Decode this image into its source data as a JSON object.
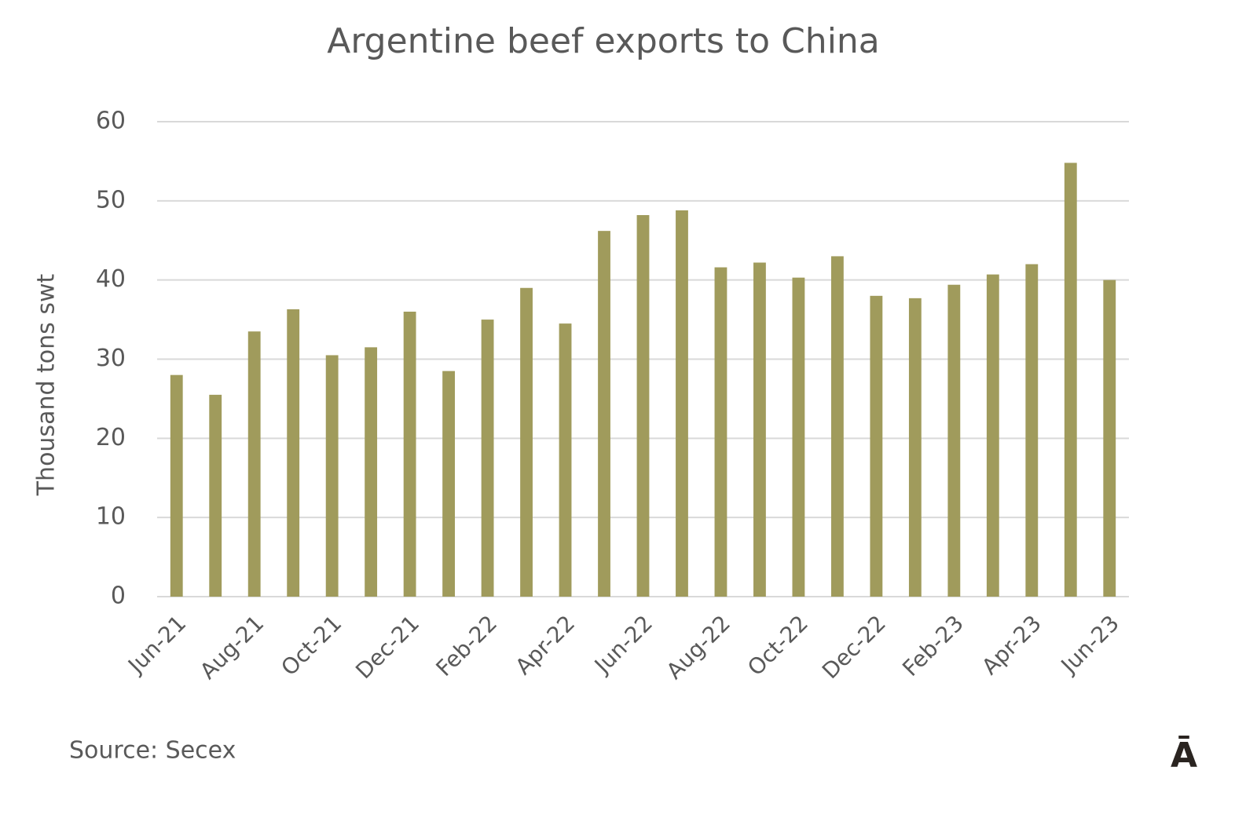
{
  "chart_data": {
    "type": "bar",
    "title": "Argentine beef exports to China",
    "y_label": "Thousand tons swt",
    "categories": [
      "Jun-21",
      null,
      "Aug-21",
      null,
      "Oct-21",
      null,
      "Dec-21",
      null,
      "Feb-22",
      null,
      "Apr-22",
      null,
      "Jun-22",
      null,
      "Aug-22",
      null,
      "Oct-22",
      null,
      "Dec-22",
      null,
      "Feb-23",
      null,
      "Apr-23",
      null,
      "Jun-23"
    ],
    "values": [
      28,
      25.5,
      33.5,
      36.3,
      30.5,
      31.5,
      36,
      28.5,
      35,
      39,
      34.5,
      46.2,
      48.2,
      48.8,
      41.6,
      42.2,
      40.3,
      43,
      38,
      37.7,
      39.4,
      40.7,
      42,
      54.8,
      40
    ],
    "color": "#a09b5c",
    "ylim": [
      0,
      60
    ],
    "yticks": [
      0,
      10,
      20,
      30,
      40,
      50,
      60
    ],
    "grid": true,
    "source": "Source: Secex",
    "logo": "Ā"
  }
}
